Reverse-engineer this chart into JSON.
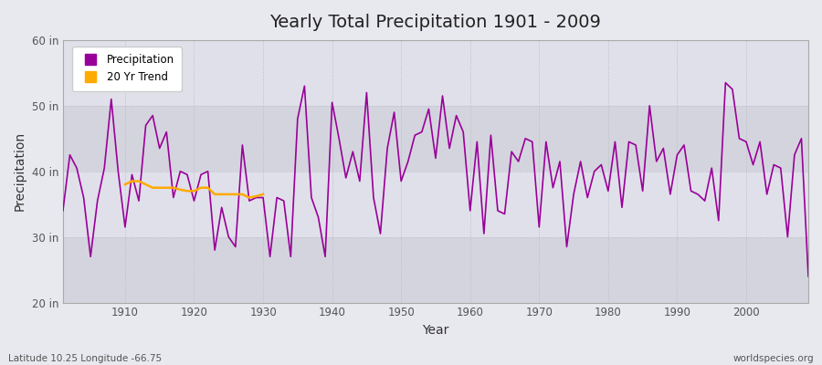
{
  "title": "Yearly Total Precipitation 1901 - 2009",
  "xlabel": "Year",
  "ylabel": "Precipitation",
  "xlim": [
    1901,
    2009
  ],
  "ylim": [
    20,
    60
  ],
  "yticks": [
    20,
    30,
    40,
    50,
    60
  ],
  "ytick_labels": [
    "20 in",
    "30 in",
    "40 in",
    "50 in",
    "60 in"
  ],
  "xticks": [
    1910,
    1920,
    1930,
    1940,
    1950,
    1960,
    1970,
    1980,
    1990,
    2000
  ],
  "precip_color": "#990099",
  "trend_color": "#ffaa00",
  "bg_color": "#e8e8ef",
  "plot_bg_color": "#e8e8ef",
  "stripe_light": "#e0e0ea",
  "stripe_dark": "#d0d0dc",
  "footer_left": "Latitude 10.25 Longitude -66.75",
  "footer_right": "worldspecies.org",
  "legend_labels": [
    "Precipitation",
    "20 Yr Trend"
  ],
  "years": [
    1901,
    1902,
    1903,
    1904,
    1905,
    1906,
    1907,
    1908,
    1909,
    1910,
    1911,
    1912,
    1913,
    1914,
    1915,
    1916,
    1917,
    1918,
    1919,
    1920,
    1921,
    1922,
    1923,
    1924,
    1925,
    1926,
    1927,
    1928,
    1929,
    1930,
    1931,
    1932,
    1933,
    1934,
    1935,
    1936,
    1937,
    1938,
    1939,
    1940,
    1941,
    1942,
    1943,
    1944,
    1945,
    1946,
    1947,
    1948,
    1949,
    1950,
    1951,
    1952,
    1953,
    1954,
    1955,
    1956,
    1957,
    1958,
    1959,
    1960,
    1961,
    1962,
    1963,
    1964,
    1965,
    1966,
    1967,
    1968,
    1969,
    1970,
    1971,
    1972,
    1973,
    1974,
    1975,
    1976,
    1977,
    1978,
    1979,
    1980,
    1981,
    1982,
    1983,
    1984,
    1985,
    1986,
    1987,
    1988,
    1989,
    1990,
    1991,
    1992,
    1993,
    1994,
    1995,
    1996,
    1997,
    1998,
    1999,
    2000,
    2001,
    2002,
    2003,
    2004,
    2005,
    2006,
    2007,
    2008,
    2009
  ],
  "precip": [
    34.0,
    42.5,
    40.5,
    36.0,
    27.0,
    35.5,
    40.5,
    51.0,
    40.0,
    31.5,
    39.5,
    35.5,
    47.0,
    48.5,
    43.5,
    46.0,
    36.0,
    40.0,
    39.5,
    35.5,
    39.5,
    40.0,
    28.0,
    34.5,
    30.0,
    28.5,
    44.0,
    35.5,
    36.0,
    36.0,
    27.0,
    36.0,
    35.5,
    27.0,
    48.0,
    53.0,
    36.0,
    33.0,
    27.0,
    50.5,
    45.0,
    39.0,
    43.0,
    38.5,
    52.0,
    36.0,
    30.5,
    43.5,
    49.0,
    38.5,
    41.5,
    45.5,
    46.0,
    49.5,
    42.0,
    51.5,
    43.5,
    48.5,
    46.0,
    34.0,
    44.5,
    30.5,
    45.5,
    34.0,
    33.5,
    43.0,
    41.5,
    45.0,
    44.5,
    31.5,
    44.5,
    37.5,
    41.5,
    28.5,
    36.5,
    41.5,
    36.0,
    40.0,
    41.0,
    37.0,
    44.5,
    34.5,
    44.5,
    44.0,
    37.0,
    50.0,
    41.5,
    43.5,
    36.5,
    42.5,
    44.0,
    37.0,
    36.5,
    35.5,
    40.5,
    32.5,
    53.5,
    52.5,
    45.0,
    44.5,
    41.0,
    44.5,
    36.5,
    41.0,
    40.5,
    30.0,
    42.5,
    45.0,
    24.0
  ],
  "trend_years": [
    1910,
    1911,
    1912,
    1913,
    1914,
    1915,
    1916,
    1917,
    1918,
    1919,
    1920,
    1921,
    1922,
    1923,
    1924,
    1925,
    1926,
    1927,
    1928,
    1929,
    1930
  ],
  "trend_values": [
    38.0,
    38.5,
    38.5,
    38.0,
    37.5,
    37.5,
    37.5,
    37.5,
    37.2,
    37.0,
    37.0,
    37.5,
    37.5,
    36.5,
    36.5,
    36.5,
    36.5,
    36.5,
    36.0,
    36.2,
    36.5
  ]
}
